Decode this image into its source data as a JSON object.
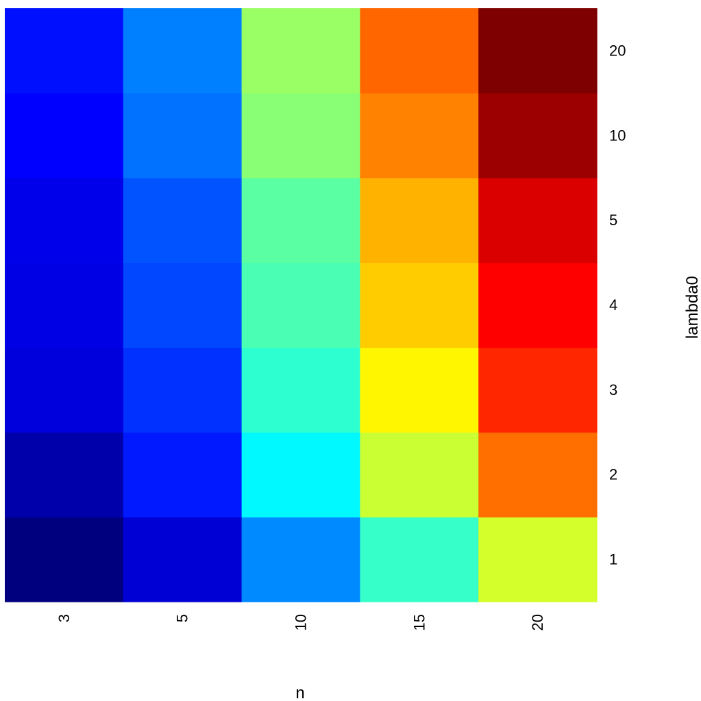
{
  "chart_data": {
    "type": "heatmap",
    "title": "",
    "xlabel": "n",
    "ylabel": "lambda0",
    "x_categories": [
      "3",
      "5",
      "10",
      "15",
      "20"
    ],
    "y_categories": [
      "1",
      "2",
      "3",
      "4",
      "5",
      "10",
      "20"
    ],
    "x_tick_position": "bottom",
    "x_tick_rotation": "vertical",
    "y_tick_position": "right",
    "grid": false,
    "legend": "none",
    "colormap": "jet",
    "cells": [
      [
        "#00007F",
        "#0000D5",
        "#008AFF",
        "#36FFC9",
        "#D5FF2A"
      ],
      [
        "#0000AA",
        "#0019FF",
        "#00F9FF",
        "#CAFF34",
        "#FF6F00"
      ],
      [
        "#0000DC",
        "#0031FF",
        "#2EFFD1",
        "#FFF600",
        "#FF2600"
      ],
      [
        "#0000E5",
        "#0047FF",
        "#4AFFB4",
        "#FFCC00",
        "#FF0000"
      ],
      [
        "#0000EA",
        "#0053FF",
        "#5BFFA3",
        "#FFB300",
        "#DA0000"
      ],
      [
        "#0000FF",
        "#0072FF",
        "#89FF75",
        "#FF8200",
        "#9C0000"
      ],
      [
        "#0010FF",
        "#0080FF",
        "#9AFF64",
        "#FF6600",
        "#7F0000"
      ]
    ]
  }
}
